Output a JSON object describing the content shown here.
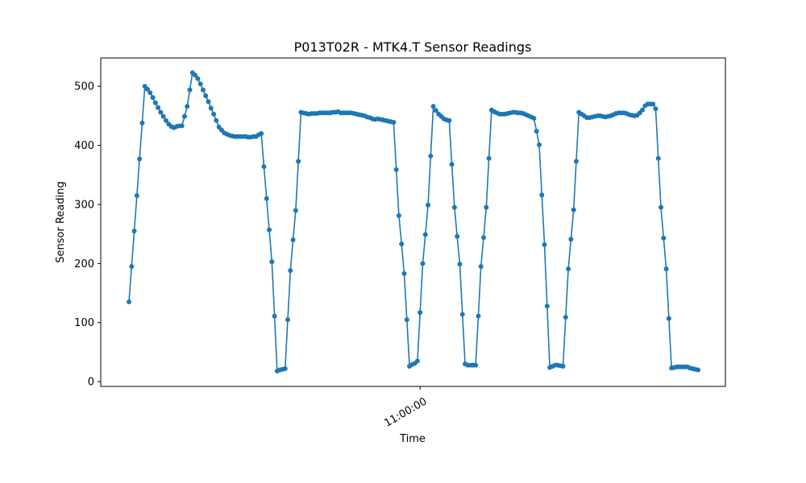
{
  "chart_data": {
    "type": "line",
    "title": "P013T02R - MTK4.T Sensor Readings",
    "xlabel": "Time",
    "ylabel": "Sensor Reading",
    "ylim": [
      -8,
      548
    ],
    "yticks": [
      0,
      100,
      200,
      300,
      400,
      500
    ],
    "xticks": [
      {
        "index": 110,
        "label": "11:00:00"
      }
    ],
    "grid": false,
    "color": "#1f77b4",
    "series": [
      {
        "values": [
          135,
          195,
          255,
          315,
          377,
          438,
          500,
          495,
          489,
          481,
          472,
          464,
          456,
          449,
          442,
          436,
          432,
          430,
          432,
          433,
          433,
          449,
          466,
          494,
          523,
          519,
          513,
          504,
          494,
          484,
          474,
          463,
          453,
          442,
          431,
          426,
          421,
          419,
          417,
          416,
          415,
          415,
          415,
          415,
          415,
          414,
          414,
          415,
          415,
          418,
          420,
          364,
          310,
          257,
          203,
          111,
          18,
          20,
          21,
          22,
          105,
          188,
          240,
          290,
          373,
          456,
          455,
          454,
          453,
          454,
          454,
          454,
          455,
          455,
          455,
          455,
          455,
          456,
          456,
          457,
          455,
          455,
          455,
          455,
          455,
          454,
          453,
          452,
          451,
          450,
          448,
          447,
          445,
          444,
          445,
          444,
          443,
          442,
          441,
          440,
          439,
          359,
          281,
          233,
          183,
          105,
          26,
          29,
          31,
          35,
          117,
          200,
          249,
          299,
          382,
          466,
          459,
          453,
          449,
          445,
          443,
          442,
          368,
          295,
          246,
          199,
          114,
          30,
          28,
          28,
          28,
          28,
          111,
          195,
          244,
          295,
          378,
          460,
          457,
          455,
          453,
          453,
          453,
          454,
          455,
          456,
          456,
          455,
          455,
          454,
          452,
          450,
          448,
          446,
          424,
          401,
          316,
          232,
          128,
          24,
          26,
          28,
          28,
          27,
          26,
          109,
          191,
          241,
          291,
          373,
          456,
          453,
          450,
          447,
          447,
          448,
          449,
          450,
          450,
          449,
          448,
          449,
          450,
          452,
          454,
          455,
          455,
          455,
          454,
          452,
          451,
          450,
          451,
          455,
          460,
          467,
          470,
          470,
          470,
          462,
          378,
          295,
          243,
          191,
          107,
          23,
          24,
          25,
          25,
          25,
          25,
          25,
          23,
          22,
          21,
          20
        ]
      }
    ]
  }
}
